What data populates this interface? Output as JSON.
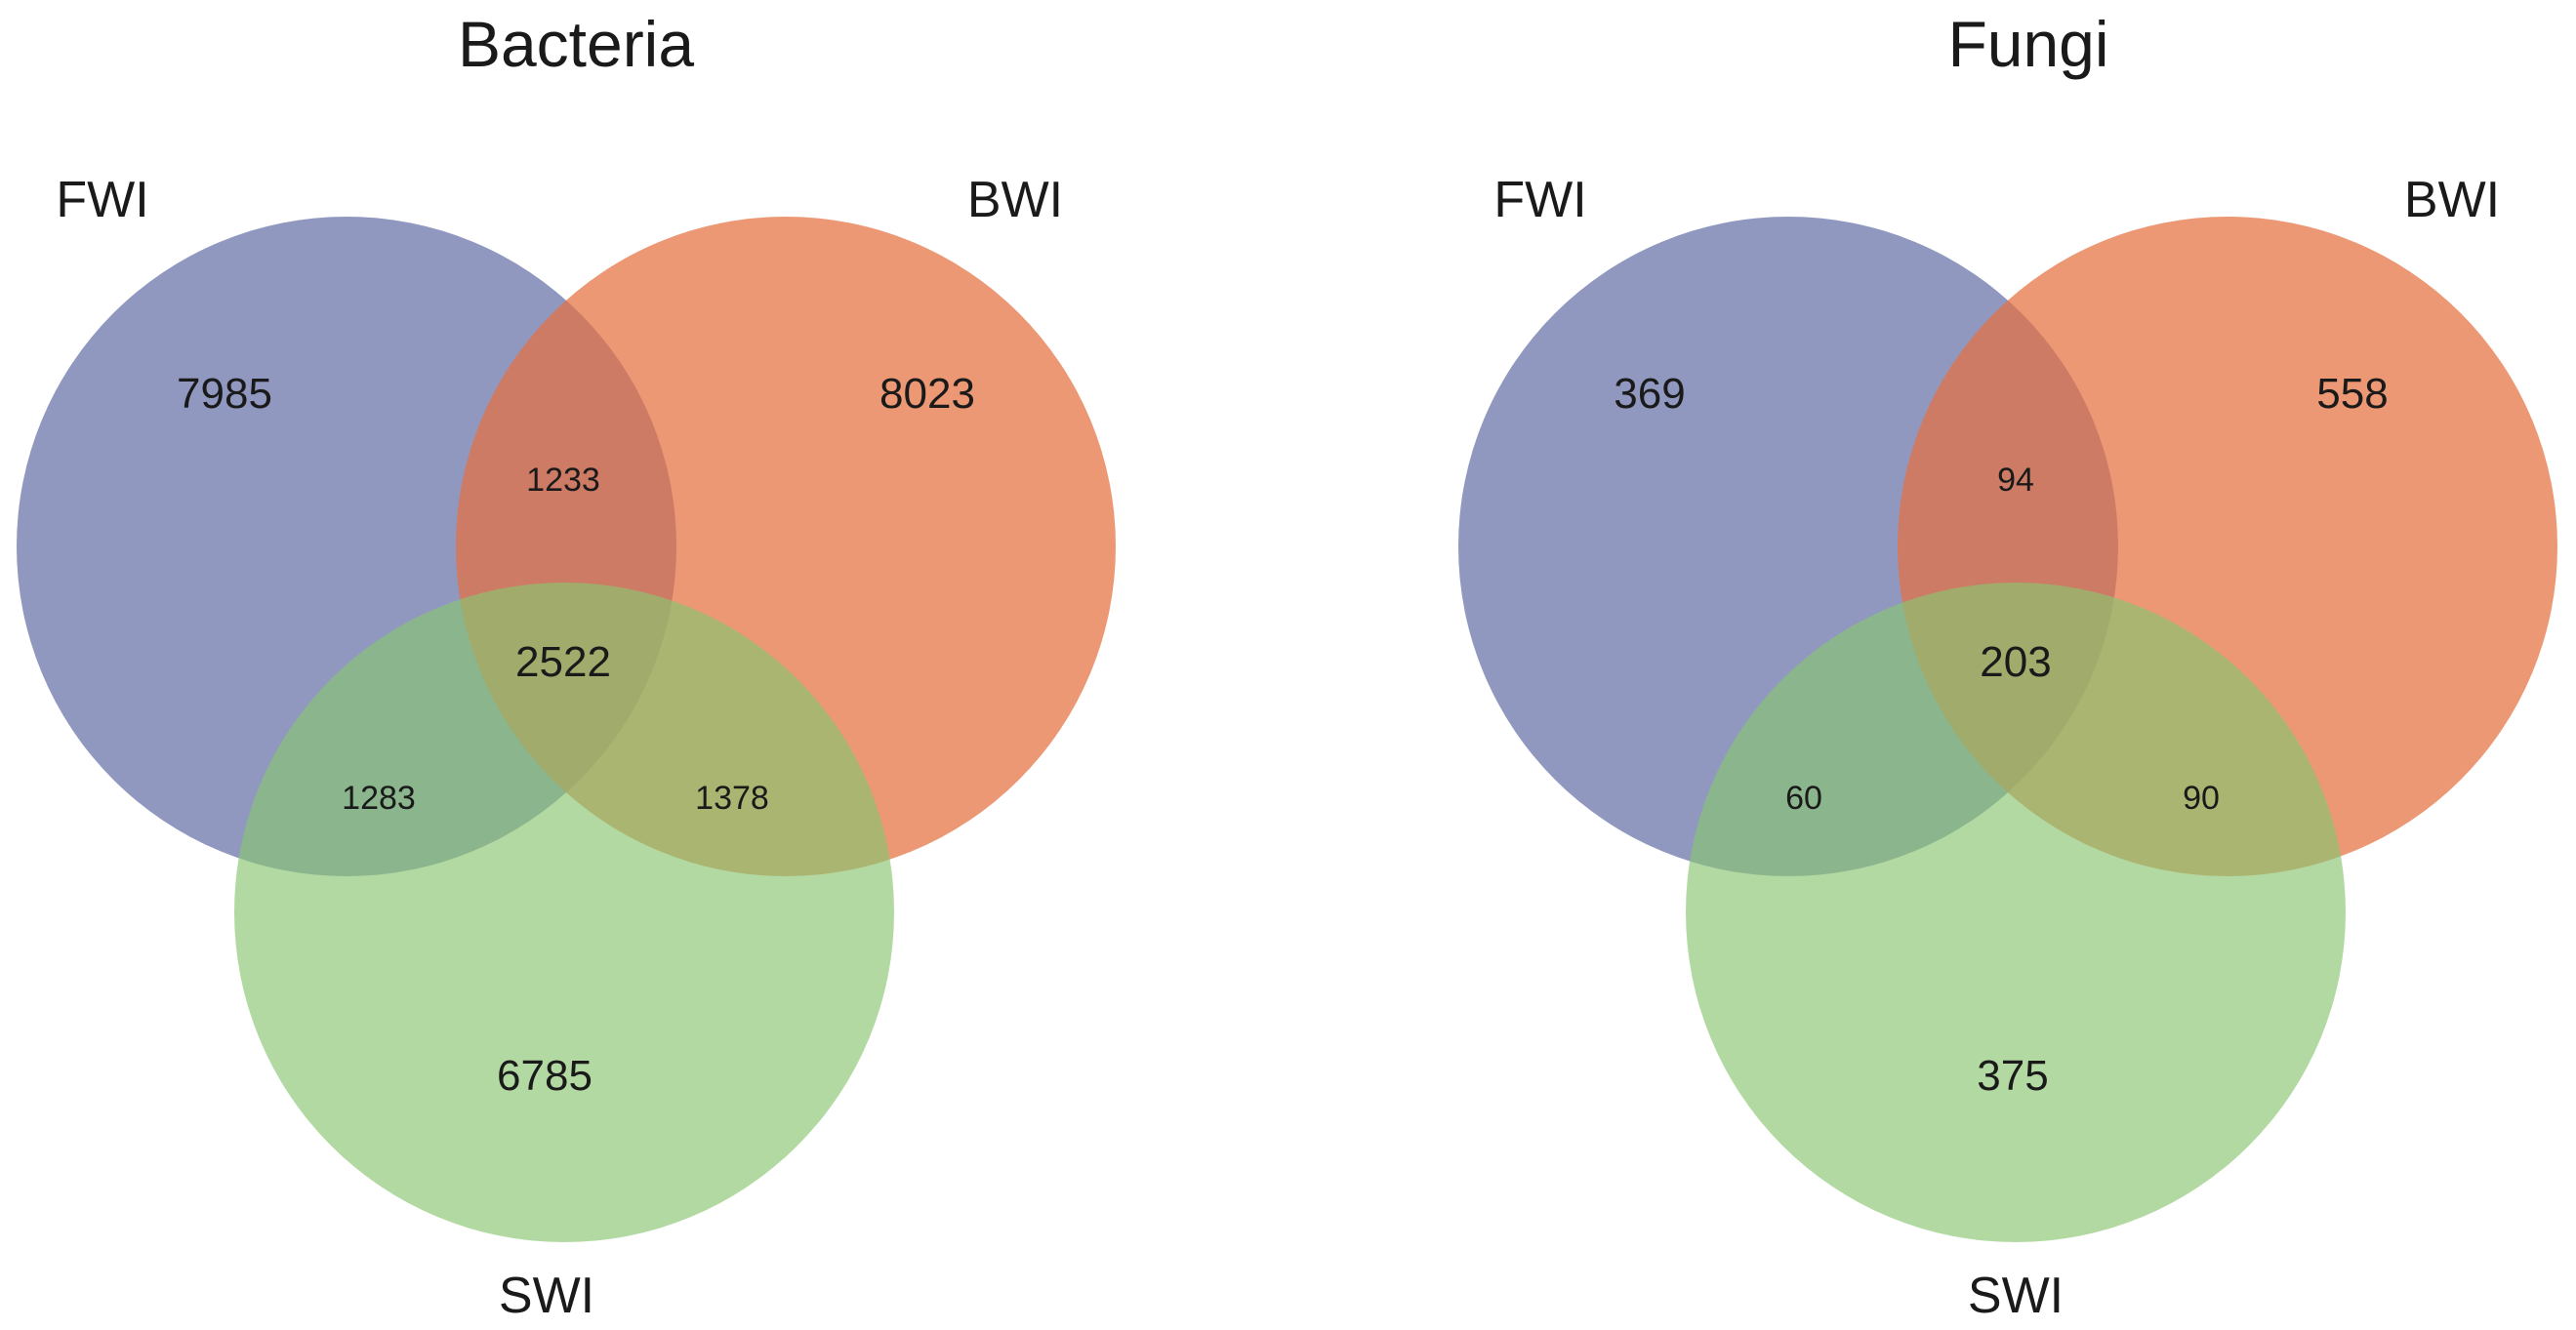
{
  "colors": {
    "FWI": "#6670a8",
    "BWI": "#e57040",
    "SWI": "#88c470"
  },
  "panels": [
    {
      "title": "Bacteria",
      "labels": {
        "FWI": "FWI",
        "BWI": "BWI",
        "SWI": "SWI"
      },
      "counts": {
        "only_FWI": "7985",
        "only_BWI": "8023",
        "only_SWI": "6785",
        "FWI_BWI": "1233",
        "FWI_SWI": "1283",
        "BWI_SWI": "1378",
        "all": "2522"
      }
    },
    {
      "title": "Fungi",
      "labels": {
        "FWI": "FWI",
        "BWI": "BWI",
        "SWI": "SWI"
      },
      "counts": {
        "only_FWI": "369",
        "only_BWI": "558",
        "only_SWI": "375",
        "FWI_BWI": "94",
        "FWI_SWI": "60",
        "BWI_SWI": "90",
        "all": "203"
      }
    }
  ]
}
